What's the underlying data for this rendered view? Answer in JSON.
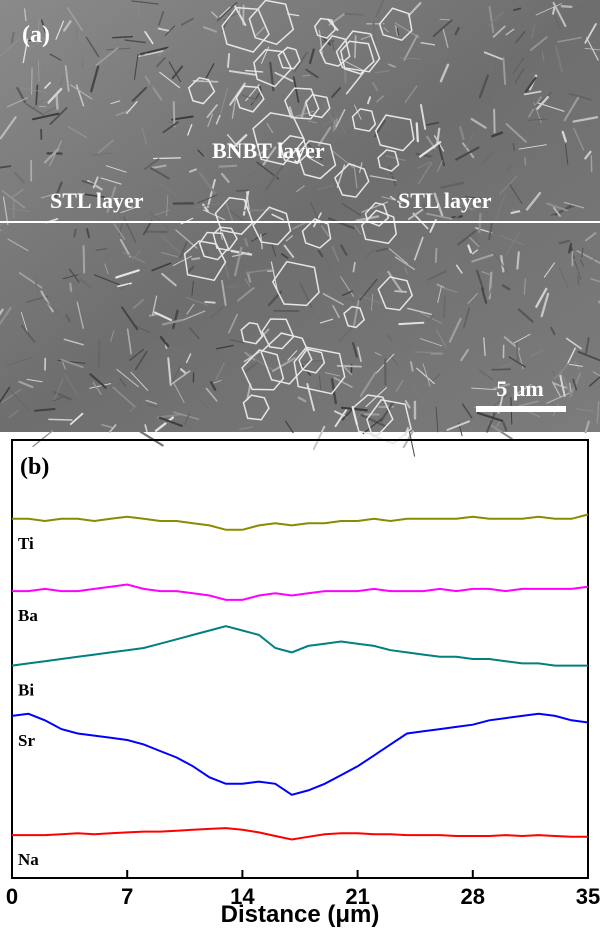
{
  "figure_a": {
    "panel_label": "(a)",
    "labels": [
      "BNBT layer",
      "STL layer",
      "STL layer"
    ],
    "scale_bar": "5 μm"
  },
  "chart_data": {
    "type": "line",
    "panel_label": "(b)",
    "x_label": "Distance (μm)",
    "x": [
      0,
      1,
      2,
      3,
      4,
      5,
      6,
      7,
      8,
      9,
      10,
      11,
      12,
      13,
      14,
      15,
      16,
      17,
      18,
      19,
      20,
      21,
      22,
      23,
      24,
      25,
      26,
      27,
      28,
      29,
      30,
      31,
      32,
      33,
      34,
      35
    ],
    "xlim": [
      0,
      35
    ],
    "xticks": [
      0,
      7,
      14,
      21,
      28,
      35
    ],
    "ylim": [
      0,
      100
    ],
    "series": [
      {
        "name": "Ti",
        "color": "#8b8a00",
        "values": [
          82,
          82,
          81.5,
          82,
          82,
          81.5,
          82,
          82.5,
          82,
          81.5,
          81.5,
          81,
          80.5,
          79.5,
          79.5,
          80.5,
          81,
          80.5,
          81,
          81,
          81.5,
          81.5,
          82,
          81.5,
          82,
          82,
          82,
          82,
          82.5,
          82,
          82,
          82,
          82.5,
          82,
          82,
          83
        ]
      },
      {
        "name": "Ba",
        "color": "#ff00ff",
        "values": [
          65.5,
          65.5,
          66,
          65.5,
          65.5,
          66,
          66.5,
          67,
          66,
          65.5,
          65.5,
          65,
          64.5,
          63.5,
          63.5,
          64.5,
          65,
          64.5,
          65,
          65.5,
          65.5,
          65.5,
          66,
          65.5,
          65.5,
          65.5,
          66,
          65.5,
          66,
          66,
          65.5,
          66,
          66,
          66,
          66,
          66.5
        ]
      },
      {
        "name": "Bi",
        "color": "#008080",
        "values": [
          48.5,
          49,
          49.5,
          50,
          50.5,
          51,
          51.5,
          52,
          52.5,
          53.5,
          54.5,
          55.5,
          56.5,
          57.5,
          56.5,
          55.5,
          52.5,
          51.5,
          53,
          53.5,
          54,
          53.5,
          53,
          52,
          51.5,
          51,
          50.5,
          50.5,
          50,
          50,
          49.5,
          49,
          49,
          48.5,
          48.5,
          48.5
        ]
      },
      {
        "name": "Sr",
        "color": "#0000ff",
        "values": [
          37,
          37.5,
          36,
          34,
          33,
          32.5,
          32,
          31.5,
          30.5,
          29,
          27.5,
          25.5,
          23,
          21.5,
          21.5,
          22,
          21.5,
          19,
          20,
          21.5,
          23.5,
          25.5,
          28,
          30.5,
          33,
          33.5,
          34,
          34.5,
          35,
          36,
          36.5,
          37,
          37.5,
          37,
          36,
          35.5
        ]
      },
      {
        "name": "Na",
        "color": "#ff0000",
        "values": [
          9.8,
          9.8,
          9.8,
          10,
          10.2,
          10,
          10.2,
          10.4,
          10.6,
          10.6,
          10.8,
          11,
          11.2,
          11.4,
          11,
          10.4,
          9.6,
          8.8,
          9.4,
          10,
          10.2,
          10.2,
          10,
          10,
          9.8,
          9.8,
          9.8,
          9.6,
          9.6,
          9.6,
          9.8,
          9.6,
          9.8,
          9.6,
          9.4,
          9.4
        ]
      }
    ]
  }
}
